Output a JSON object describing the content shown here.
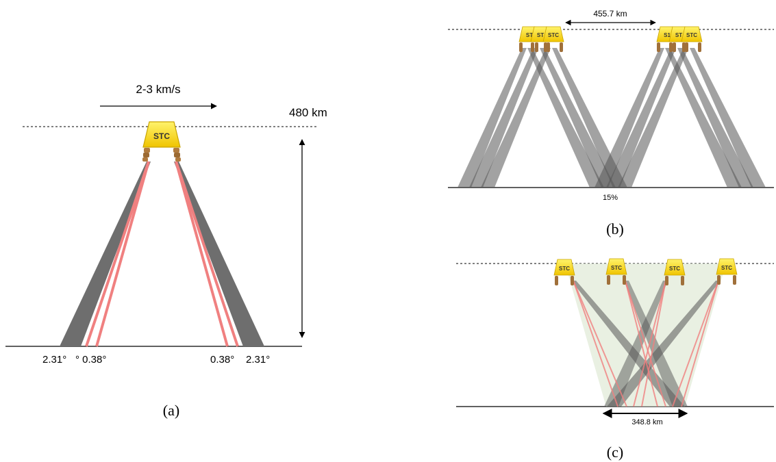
{
  "panel_a": {
    "caption": "(a)",
    "velocity_label": "2-3 km/s",
    "altitude_label": "480 km",
    "instrument_label": "STC",
    "angle_outer_left": "2.31°",
    "angle_inner_left": "° 0.38°",
    "angle_inner_right": "0.38°",
    "angle_outer_right": "2.31°"
  },
  "panel_b": {
    "caption": "(b)",
    "distance_label": "455.7 km",
    "overlap_label": "15%",
    "instrument_label": "STC",
    "instrument_label_partial": "ST",
    "instrument_label_partial_right": "S1"
  },
  "panel_c": {
    "caption": "(c)",
    "width_label": "348.8 km",
    "instrument_label": "STC"
  },
  "colors": {
    "gray_beam": "#6e6e6e",
    "pink_beam": "#f08080",
    "stc_yellow": "#f5d020",
    "stc_border": "#c9a400",
    "leg_brown": "#a0703a",
    "fill_green": "#e6f0df"
  }
}
